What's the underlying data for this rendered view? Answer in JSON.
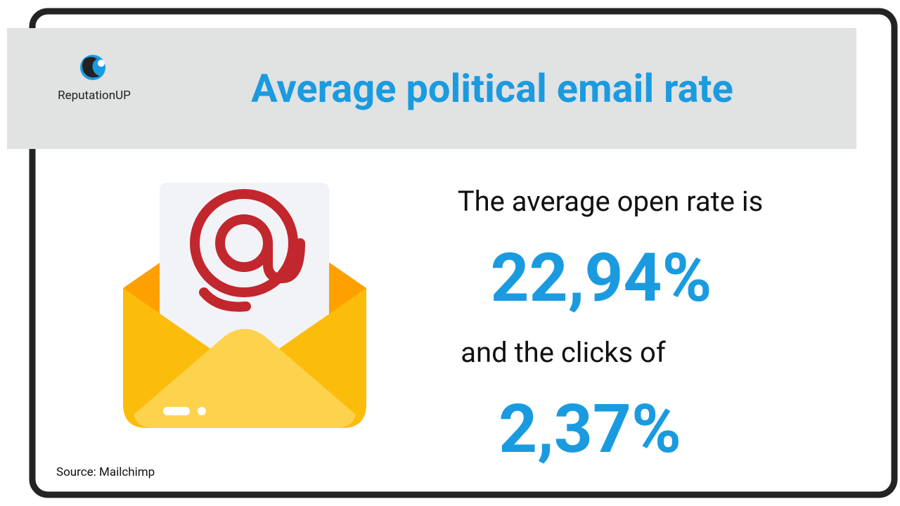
{
  "header": {
    "title": "Average political email rate",
    "logo": "ReputationUP"
  },
  "stats": [
    {
      "label": "The average open rate is",
      "value": "22,94%"
    },
    {
      "label": "and the clicks of",
      "value": "2,37%"
    }
  ],
  "footer": {
    "source": "Source: Mailchimp"
  }
}
